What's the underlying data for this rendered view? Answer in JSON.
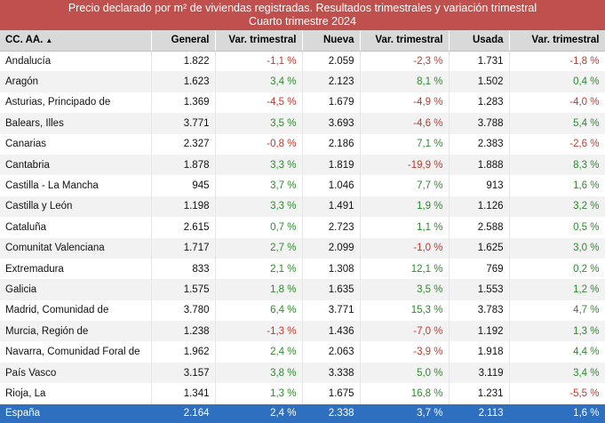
{
  "title": {
    "line1": "Precio declarado por m² de viviendas registradas. Resultados trimestrales y variación trimestral",
    "line2": "Cuarto trimestre 2024"
  },
  "headers": {
    "region": "CC. AA.",
    "sort_indicator": "▲",
    "general": "General",
    "var1": "Var. trimestral",
    "nueva": "Nueva",
    "var2": "Var. trimestral",
    "usada": "Usada",
    "var3": "Var. trimestral"
  },
  "rows": [
    {
      "region": "Andalucía",
      "general": "1.822",
      "var_general": "-1,1 %",
      "nueva": "2.059",
      "var_nueva": "-2,3 %",
      "usada": "1.731",
      "var_usada": "-1,8 %"
    },
    {
      "region": "Aragón",
      "general": "1.623",
      "var_general": "3,4 %",
      "nueva": "2.123",
      "var_nueva": "8,1 %",
      "usada": "1.502",
      "var_usada": "0,4 %"
    },
    {
      "region": "Asturias, Principado de",
      "general": "1.369",
      "var_general": "-4,5 %",
      "nueva": "1.679",
      "var_nueva": "-4,9 %",
      "usada": "1.283",
      "var_usada": "-4,0 %"
    },
    {
      "region": "Balears, Illes",
      "general": "3.771",
      "var_general": "3,5 %",
      "nueva": "3.693",
      "var_nueva": "-4,6 %",
      "usada": "3.788",
      "var_usada": "5,4 %"
    },
    {
      "region": "Canarias",
      "general": "2.327",
      "var_general": "-0,8 %",
      "nueva": "2.186",
      "var_nueva": "7,1 %",
      "usada": "2.383",
      "var_usada": "-2,6 %"
    },
    {
      "region": "Cantabria",
      "general": "1.878",
      "var_general": "3,3 %",
      "nueva": "1.819",
      "var_nueva": "-19,9 %",
      "usada": "1.888",
      "var_usada": "8,3 %"
    },
    {
      "region": "Castilla - La Mancha",
      "general": "945",
      "var_general": "3,7 %",
      "nueva": "1.046",
      "var_nueva": "7,7 %",
      "usada": "913",
      "var_usada": "1,6 %"
    },
    {
      "region": "Castilla y León",
      "general": "1.198",
      "var_general": "3,3 %",
      "nueva": "1.491",
      "var_nueva": "1,9 %",
      "usada": "1.126",
      "var_usada": "3,2 %"
    },
    {
      "region": "Cataluña",
      "general": "2.615",
      "var_general": "0,7 %",
      "nueva": "2.723",
      "var_nueva": "1,1 %",
      "usada": "2.588",
      "var_usada": "0,5 %"
    },
    {
      "region": "Comunitat Valenciana",
      "general": "1.717",
      "var_general": "2,7 %",
      "nueva": "2.099",
      "var_nueva": "-1,0 %",
      "usada": "1.625",
      "var_usada": "3,0 %"
    },
    {
      "region": "Extremadura",
      "general": "833",
      "var_general": "2,1 %",
      "nueva": "1.308",
      "var_nueva": "12,1 %",
      "usada": "769",
      "var_usada": "0,2 %"
    },
    {
      "region": "Galicia",
      "general": "1.575",
      "var_general": "1,8 %",
      "nueva": "1.635",
      "var_nueva": "3,5 %",
      "usada": "1.553",
      "var_usada": "1,2 %"
    },
    {
      "region": "Madrid, Comunidad de",
      "general": "3.780",
      "var_general": "6,4 %",
      "nueva": "3.771",
      "var_nueva": "15,3 %",
      "usada": "3.783",
      "var_usada": "4,7 %"
    },
    {
      "region": "Murcia, Región de",
      "general": "1.238",
      "var_general": "-1,3 %",
      "nueva": "1.436",
      "var_nueva": "-7,0 %",
      "usada": "1.192",
      "var_usada": "1,3 %"
    },
    {
      "region": "Navarra, Comunidad Foral de",
      "general": "1.962",
      "var_general": "2,4 %",
      "nueva": "2.063",
      "var_nueva": "-3,9 %",
      "usada": "1.918",
      "var_usada": "4,4 %"
    },
    {
      "region": "País Vasco",
      "general": "3.157",
      "var_general": "3,8 %",
      "nueva": "3.338",
      "var_nueva": "5,0 %",
      "usada": "3.119",
      "var_usada": "3,4 %"
    },
    {
      "region": "Rioja, La",
      "general": "1.341",
      "var_general": "1,3 %",
      "nueva": "1.675",
      "var_nueva": "16,8 %",
      "usada": "1.231",
      "var_usada": "-5,5 %"
    }
  ],
  "total": {
    "region": "España",
    "general": "2.164",
    "var_general": "2,4 %",
    "nueva": "2.338",
    "var_nueva": "3,7 %",
    "usada": "2.113",
    "var_usada": "1,6 %"
  },
  "colors": {
    "title_bg": "#c0504d",
    "header_bg": "#d9d9d9",
    "total_bg": "#2f6fbf",
    "positive": "#2e8b2e",
    "negative": "#c0392b"
  }
}
